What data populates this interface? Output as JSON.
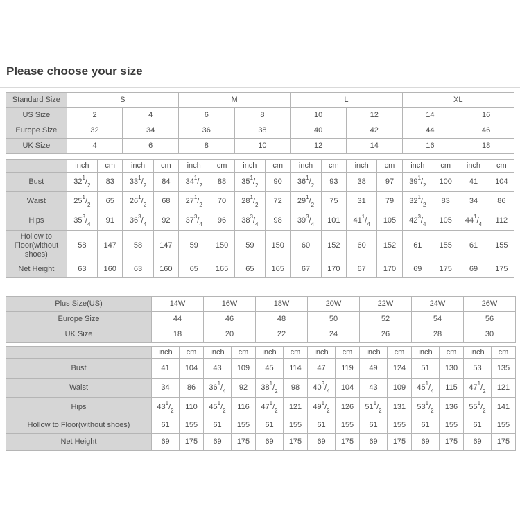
{
  "page_title": "Please choose your size",
  "colors": {
    "header_bg": "#d6d6d6",
    "border": "#b5b5b5",
    "text": "#4c4c4c",
    "title_text": "#3a3a3a"
  },
  "units": [
    "inch",
    "cm"
  ],
  "standard": {
    "size_rows": [
      {
        "label": "Standard Size",
        "span": 4,
        "values": [
          "S",
          "M",
          "L",
          "XL"
        ]
      },
      {
        "label": "US Size",
        "span": 2,
        "values": [
          "2",
          "4",
          "6",
          "8",
          "10",
          "12",
          "14",
          "16"
        ]
      },
      {
        "label": "Europe Size",
        "span": 2,
        "values": [
          "32",
          "34",
          "36",
          "38",
          "40",
          "42",
          "44",
          "46"
        ]
      },
      {
        "label": "UK Size",
        "span": 2,
        "values": [
          "4",
          "6",
          "8",
          "10",
          "12",
          "14",
          "16",
          "18"
        ]
      }
    ],
    "measure_rows": [
      {
        "label": "Bust",
        "h": "big",
        "inch": [
          "32 1/2",
          "33 1/2",
          "34 1/2",
          "35 1/2",
          "36 1/2",
          "38",
          "39 1/2",
          "41"
        ],
        "cm": [
          "83",
          "84",
          "88",
          "90",
          "93",
          "97",
          "100",
          "104"
        ]
      },
      {
        "label": "Waist",
        "h": "big",
        "inch": [
          "25 1/2",
          "26 1/2",
          "27 1/2",
          "28 1/2",
          "29 1/2",
          "31",
          "32 1/2",
          "34"
        ],
        "cm": [
          "65",
          "68",
          "70",
          "72",
          "75",
          "79",
          "83",
          "86"
        ]
      },
      {
        "label": "Hips",
        "h": "big",
        "inch": [
          "35 3/4",
          "36 3/4",
          "37 3/4",
          "38 3/4",
          "39 3/4",
          "41 1/4",
          "42 3/4",
          "44 1/4"
        ],
        "cm": [
          "91",
          "92",
          "96",
          "98",
          "101",
          "105",
          "105",
          "112"
        ]
      },
      {
        "label": "Hollow to Floor(without shoes)",
        "h": "wrap",
        "inch": [
          "58",
          "58",
          "59",
          "59",
          "60",
          "60",
          "61",
          "61"
        ],
        "cm": [
          "147",
          "147",
          "150",
          "150",
          "152",
          "152",
          "155",
          "155"
        ]
      },
      {
        "label": "Net Height",
        "h": "small",
        "inch": [
          "63",
          "63",
          "65",
          "65",
          "67",
          "67",
          "69",
          "69"
        ],
        "cm": [
          "160",
          "160",
          "165",
          "165",
          "170",
          "170",
          "175",
          "175"
        ]
      }
    ]
  },
  "plus": {
    "size_rows": [
      {
        "label": "Plus Size(US)",
        "span": 2,
        "values": [
          "14W",
          "16W",
          "18W",
          "20W",
          "22W",
          "24W",
          "26W"
        ]
      },
      {
        "label": "Europe Size",
        "span": 2,
        "values": [
          "44",
          "46",
          "48",
          "50",
          "52",
          "54",
          "56"
        ]
      },
      {
        "label": "UK Size",
        "span": 2,
        "values": [
          "18",
          "20",
          "22",
          "24",
          "26",
          "28",
          "30"
        ]
      }
    ],
    "measure_rows": [
      {
        "label": "Bust",
        "h": "big",
        "inch": [
          "41",
          "43",
          "45",
          "47",
          "49",
          "51",
          "53"
        ],
        "cm": [
          "104",
          "109",
          "114",
          "119",
          "124",
          "130",
          "135"
        ]
      },
      {
        "label": "Waist",
        "h": "big",
        "inch": [
          "34",
          "36 1/4",
          "38 1/2",
          "40 3/4",
          "43",
          "45 1/4",
          "47 1/2"
        ],
        "cm": [
          "86",
          "92",
          "98",
          "104",
          "109",
          "115",
          "121"
        ]
      },
      {
        "label": "Hips",
        "h": "big",
        "inch": [
          "43 1/2",
          "45 1/2",
          "47 1/2",
          "49 1/2",
          "51 1/2",
          "53 1/2",
          "55 1/2"
        ],
        "cm": [
          "110",
          "116",
          "121",
          "126",
          "131",
          "136",
          "141"
        ]
      },
      {
        "label": "Hollow to Floor(without shoes)",
        "h": "small",
        "inch": [
          "61",
          "61",
          "61",
          "61",
          "61",
          "61",
          "61"
        ],
        "cm": [
          "155",
          "155",
          "155",
          "155",
          "155",
          "155",
          "155"
        ]
      },
      {
        "label": "Net Height",
        "h": "small",
        "inch": [
          "69",
          "69",
          "69",
          "69",
          "69",
          "69",
          "69"
        ],
        "cm": [
          "175",
          "175",
          "175",
          "175",
          "175",
          "175",
          "175"
        ]
      }
    ]
  }
}
